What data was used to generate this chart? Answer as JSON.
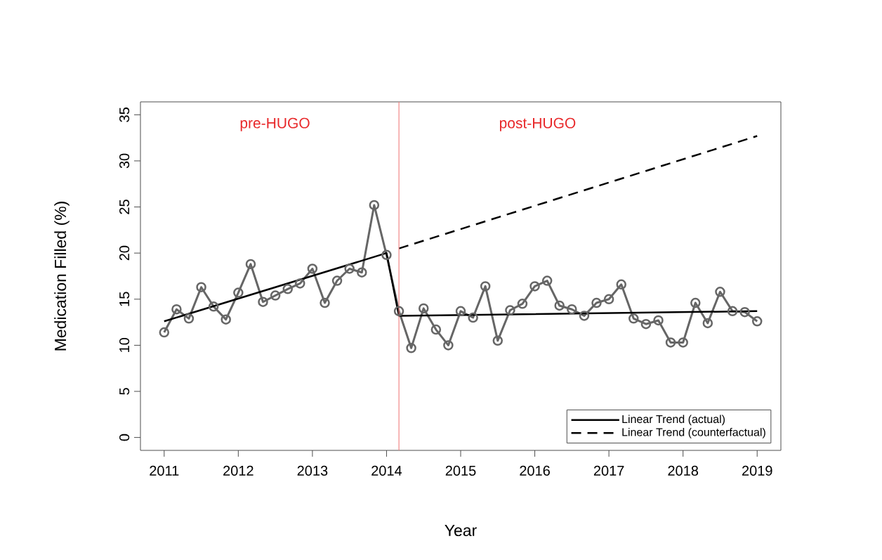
{
  "chart_data": {
    "type": "line",
    "xlabel": "Year",
    "ylabel": "Medication Filled (%)",
    "xlim": [
      2010.68,
      2019.32
    ],
    "ylim": [
      -1.4,
      36.4
    ],
    "xticks": [
      2011,
      2012,
      2013,
      2014,
      2015,
      2016,
      2017,
      2018,
      2019
    ],
    "yticks": [
      0,
      5,
      10,
      15,
      20,
      25,
      30,
      35
    ],
    "grid": false,
    "legend": "bottom right",
    "ref_lines": [
      {
        "axis": "x",
        "value": 2014.167,
        "color": "#f08080"
      }
    ],
    "annotations": [
      "pre-HUGO",
      "post-HUGO"
    ],
    "series": [
      {
        "color": "#666666",
        "marker": "circle",
        "line_style": "solid",
        "x": [
          2011,
          2011.167,
          2011.333,
          2011.5,
          2011.667,
          2011.833,
          2012,
          2012.167,
          2012.333,
          2012.5,
          2012.667,
          2012.833,
          2013,
          2013.167,
          2013.333,
          2013.5,
          2013.667,
          2013.833,
          2014,
          2014.167,
          2014.333,
          2014.5,
          2014.667,
          2014.833,
          2015,
          2015.167,
          2015.333,
          2015.5,
          2015.667,
          2015.833,
          2016,
          2016.167,
          2016.333,
          2016.5,
          2016.667,
          2016.833,
          2017,
          2017.167,
          2017.333,
          2017.5,
          2017.667,
          2017.833,
          2018,
          2018.167,
          2018.333,
          2018.5,
          2018.667,
          2018.833,
          2019
        ],
        "values": [
          11.4,
          13.9,
          12.9,
          16.3,
          14.2,
          12.8,
          15.7,
          18.8,
          14.7,
          15.4,
          16.1,
          16.7,
          18.3,
          14.6,
          17.0,
          18.3,
          17.9,
          25.2,
          19.8,
          13.7,
          9.7,
          14.0,
          11.7,
          10.0,
          13.7,
          13.0,
          16.4,
          10.5,
          13.8,
          14.5,
          16.4,
          17.0,
          14.3,
          13.9,
          13.2,
          14.6,
          15.0,
          16.6,
          12.9,
          12.3,
          12.7,
          10.3,
          10.3,
          14.6,
          12.4,
          15.8,
          13.7,
          13.6,
          12.6
        ]
      },
      {
        "type": "line",
        "name": "Linear Trend (actual)",
        "color": "#000000",
        "marker": "none",
        "line_style": "solid",
        "x": [
          2011,
          2014,
          2014.167,
          2019
        ],
        "values": [
          12.6,
          20.0,
          13.2,
          13.7
        ]
      },
      {
        "type": "line",
        "name": "Linear Trend (counterfactual)",
        "color": "#000000",
        "marker": "none",
        "line_style": "dashed",
        "x": [
          2014.167,
          2019
        ],
        "values": [
          20.5,
          32.7
        ]
      }
    ]
  }
}
